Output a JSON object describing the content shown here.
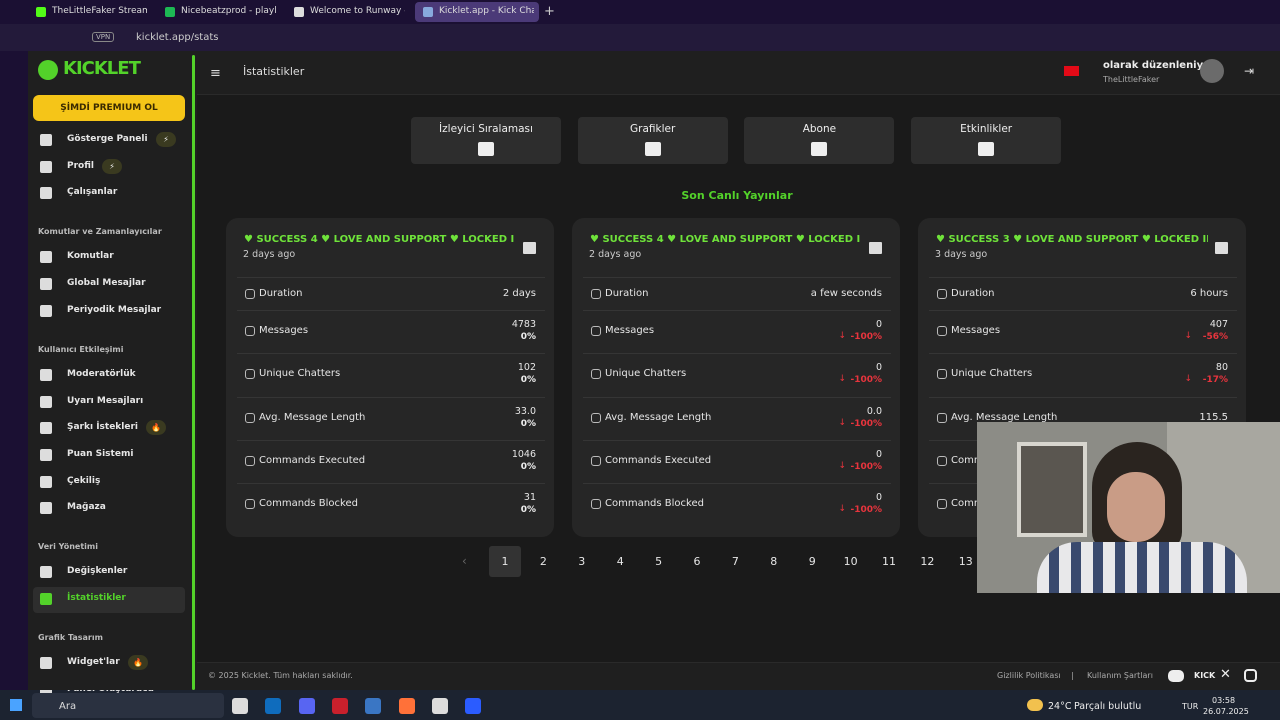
{
  "browser": {
    "tabs": [
      "TheLittleFaker Stream - W",
      "Nicebeatzprod - playlist",
      "Welcome to Runway - Ru",
      "Kicklet.app - Kick Chatbo"
    ],
    "vpn": "VPN",
    "address": "kicklet.app/stats"
  },
  "sidebar": {
    "logo": "KICKLET",
    "premium": "ŞİMDİ PREMIUM OL",
    "items": [
      {
        "label": "Gösterge Paneli",
        "badge": "⚡"
      },
      {
        "label": "Profil",
        "badge": "⚡"
      },
      {
        "label": "Çalışanlar"
      }
    ],
    "sections": [
      {
        "title": "Komutlar ve Zamanlayıcılar",
        "items": [
          {
            "label": "Komutlar"
          },
          {
            "label": "Global Mesajlar"
          },
          {
            "label": "Periyodik Mesajlar"
          }
        ]
      },
      {
        "title": "Kullanıcı Etkileşimi",
        "items": [
          {
            "label": "Moderatörlük"
          },
          {
            "label": "Uyarı Mesajları"
          },
          {
            "label": "Şarkı İstekleri",
            "badge": "🔥"
          },
          {
            "label": "Puan Sistemi"
          },
          {
            "label": "Çekiliş"
          },
          {
            "label": "Mağaza"
          }
        ]
      },
      {
        "title": "Veri Yönetimi",
        "items": [
          {
            "label": "Değişkenler"
          },
          {
            "label": "İstatistikler",
            "active": true
          }
        ]
      },
      {
        "title": "Grafik Tasarım",
        "items": [
          {
            "label": "Widget'lar",
            "badge": "🔥"
          },
          {
            "label": "Panel Oluşturucu"
          }
        ]
      }
    ]
  },
  "header": {
    "title": "İstatistikler",
    "user_status": "olarak düzenleniyor",
    "user_name": "TheLittleFaker"
  },
  "tabs": [
    "İzleyici Sıralaması",
    "Grafikler",
    "Abone",
    "Etkinlikler"
  ],
  "section_title": "Son Canlı Yayınlar",
  "cards": [
    {
      "title": "♥ SUCCESS 4 ♥ LOVE AND SUPPORT ♥ LOCKED I",
      "time": "2 days ago",
      "rows": [
        {
          "label": "Duration",
          "value": "2 days"
        },
        {
          "label": "Messages",
          "value": "4783",
          "change": "0%"
        },
        {
          "label": "Unique Chatters",
          "value": "102",
          "change": "0%"
        },
        {
          "label": "Avg. Message Length",
          "value": "33.0",
          "change": "0%"
        },
        {
          "label": "Commands Executed",
          "value": "1046",
          "change": "0%"
        },
        {
          "label": "Commands Blocked",
          "value": "31",
          "change": "0%"
        }
      ]
    },
    {
      "title": "♥ SUCCESS 4 ♥ LOVE AND SUPPORT ♥ LOCKED I",
      "time": "2 days ago",
      "rows": [
        {
          "label": "Duration",
          "value": "a few seconds"
        },
        {
          "label": "Messages",
          "value": "0",
          "change": "-100%"
        },
        {
          "label": "Unique Chatters",
          "value": "0",
          "change": "-100%"
        },
        {
          "label": "Avg. Message Length",
          "value": "0.0",
          "change": "-100%"
        },
        {
          "label": "Commands Executed",
          "value": "0",
          "change": "-100%"
        },
        {
          "label": "Commands Blocked",
          "value": "0",
          "change": "-100%"
        }
      ]
    },
    {
      "title": "♥ SUCCESS 3 ♥ LOVE AND SUPPORT ♥ LOCKED II",
      "time": "3 days ago",
      "rows": [
        {
          "label": "Duration",
          "value": "6 hours"
        },
        {
          "label": "Messages",
          "value": "407",
          "change": "-56%"
        },
        {
          "label": "Unique Chatters",
          "value": "80",
          "change": "-17%"
        },
        {
          "label": "Avg. Message Length",
          "value": "115.5"
        },
        {
          "label": "Commands Executed"
        },
        {
          "label": "Commands Blocked"
        }
      ]
    }
  ],
  "pagination": {
    "pages": [
      "1",
      "2",
      "3",
      "4",
      "5",
      "6",
      "7",
      "8",
      "9",
      "10",
      "11",
      "12",
      "13"
    ],
    "current": 0
  },
  "footer": {
    "copyright": "© 2025 Kicklet. Tüm hakları saklıdır.",
    "privacy": "Gizlilik Politikası",
    "separator": "|",
    "terms": "Kullanım Şartları",
    "kick": "KICK"
  },
  "taskbar": {
    "search": "Ara",
    "temperature": "24°C",
    "weather": "Parçalı bulutlu",
    "language": "TUR",
    "time": "03:58",
    "date": "26.07.2025"
  }
}
